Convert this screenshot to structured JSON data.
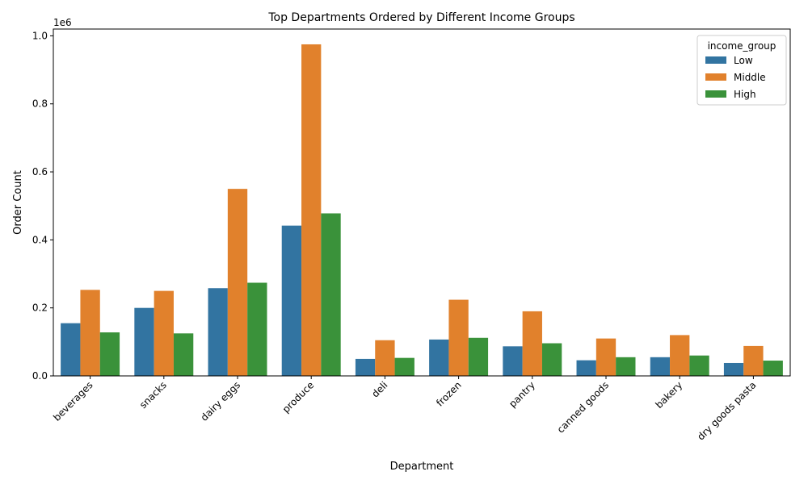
{
  "chart_data": {
    "type": "bar",
    "title": "Top Departments Ordered by Different Income Groups",
    "xlabel": "Department",
    "ylabel": "Order Count",
    "y_offset_label": "1e6",
    "ylim": [
      0,
      1.02
    ],
    "yticks": [
      0.0,
      0.2,
      0.4,
      0.6,
      0.8,
      1.0
    ],
    "ytick_labels": [
      "0.0",
      "0.2",
      "0.4",
      "0.6",
      "0.8",
      "1.0"
    ],
    "grid": false,
    "legend_position": "top-right",
    "legend_title": "income_group",
    "categories": [
      "beverages",
      "snacks",
      "dairy eggs",
      "produce",
      "deli",
      "frozen",
      "pantry",
      "canned goods",
      "bakery",
      "dry goods pasta"
    ],
    "series": [
      {
        "name": "Low",
        "color": "#3274a1",
        "values": [
          0.155,
          0.2,
          0.258,
          0.442,
          0.05,
          0.107,
          0.087,
          0.046,
          0.055,
          0.038
        ]
      },
      {
        "name": "Middle",
        "color": "#e1812c",
        "values": [
          0.253,
          0.25,
          0.55,
          0.975,
          0.105,
          0.224,
          0.19,
          0.11,
          0.12,
          0.088
        ]
      },
      {
        "name": "High",
        "color": "#3a923a",
        "values": [
          0.128,
          0.125,
          0.274,
          0.478,
          0.053,
          0.112,
          0.096,
          0.055,
          0.06,
          0.045
        ]
      }
    ]
  }
}
